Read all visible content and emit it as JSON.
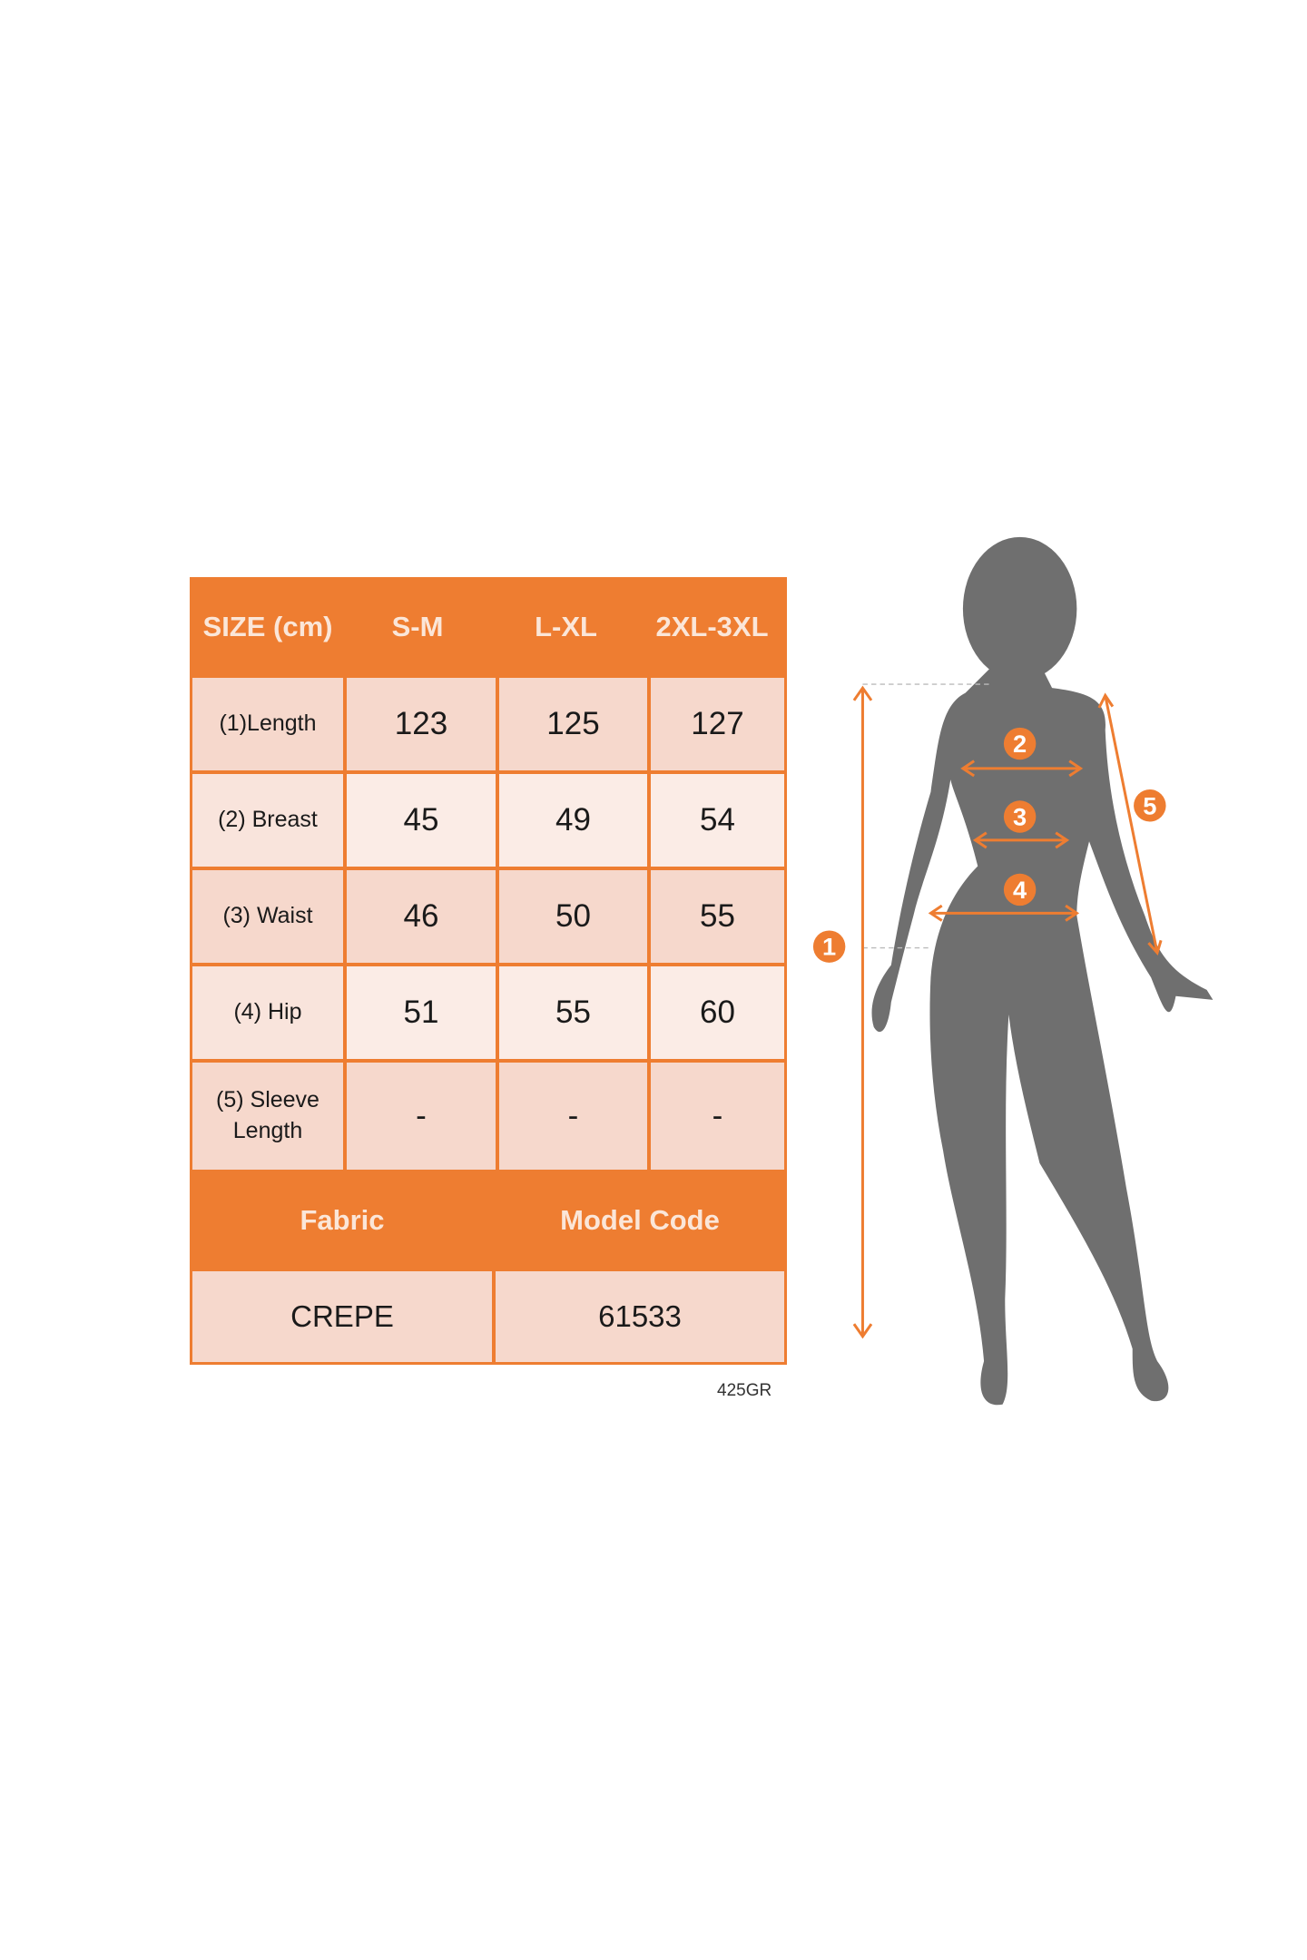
{
  "colors": {
    "accent": "#ee7d31",
    "silhouette": "#6f6f6f"
  },
  "table": {
    "header": {
      "size_label": "SIZE (cm)",
      "sizes": [
        "S-M",
        "L-XL",
        "2XL-3XL"
      ]
    },
    "rows": [
      {
        "label": "(1)Length",
        "values": [
          "123",
          "125",
          "127"
        ]
      },
      {
        "label": "(2) Breast",
        "values": [
          "45",
          "49",
          "54"
        ]
      },
      {
        "label": "(3) Waist",
        "values": [
          "46",
          "50",
          "55"
        ]
      },
      {
        "label": "(4) Hip",
        "values": [
          "51",
          "55",
          "60"
        ]
      },
      {
        "label": "(5) Sleeve Length",
        "values": [
          "-",
          "-",
          "-"
        ]
      }
    ],
    "footer": {
      "fabric_label": "Fabric",
      "model_code_label": "Model Code",
      "fabric": "CREPE",
      "model_code": "61533"
    }
  },
  "gsm": "425GR",
  "figure": {
    "markers": [
      "1",
      "2",
      "3",
      "4",
      "5"
    ]
  }
}
